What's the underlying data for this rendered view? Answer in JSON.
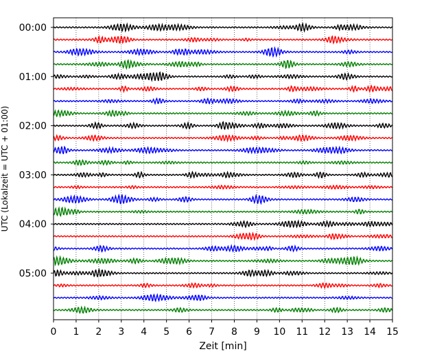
{
  "chart_data": {
    "type": "line",
    "title": "",
    "xlabel": "Zeit  [min]",
    "ylabel": "UTC (Lokalzeit = UTC + 01:00)",
    "xlim": [
      0,
      15
    ],
    "xticks": [
      0,
      1,
      2,
      3,
      4,
      5,
      6,
      7,
      8,
      9,
      10,
      11,
      12,
      13,
      14,
      15
    ],
    "yticks": [
      {
        "trace_index": 0,
        "label": "00:00"
      },
      {
        "trace_index": 4,
        "label": "01:00"
      },
      {
        "trace_index": 8,
        "label": "02:00"
      },
      {
        "trace_index": 12,
        "label": "03:00"
      },
      {
        "trace_index": 16,
        "label": "04:00"
      },
      {
        "trace_index": 20,
        "label": "05:00"
      }
    ],
    "grid": "vertical-dotted",
    "trace_count": 24,
    "trace_minutes": 15,
    "trace_colors": [
      "#000000",
      "#ff0000",
      "#0000ff",
      "#008000"
    ],
    "legend": "none"
  }
}
